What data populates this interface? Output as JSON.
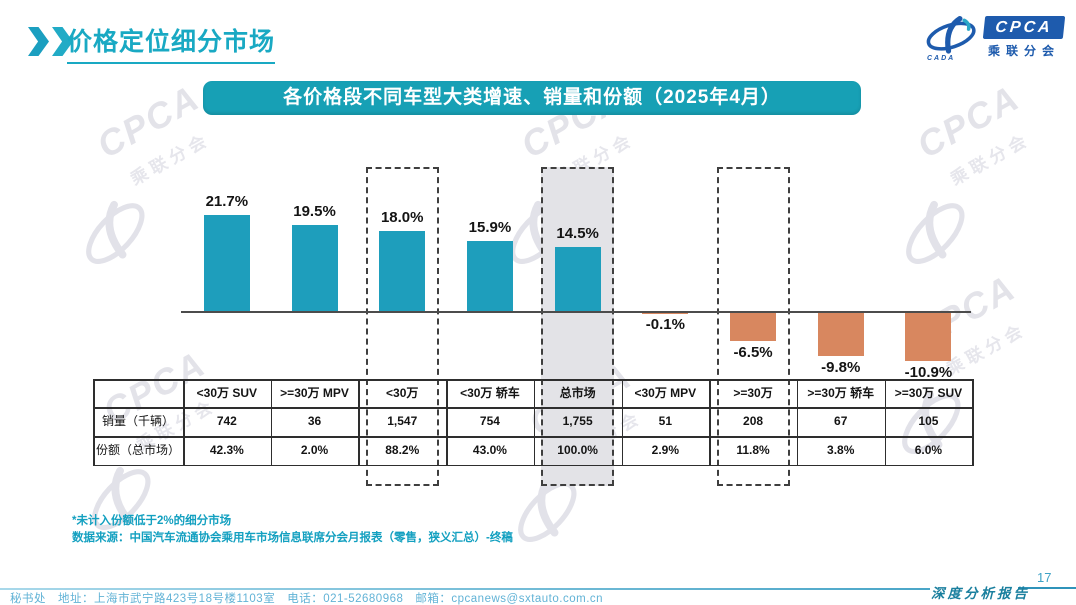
{
  "header": {
    "title": "价格定位细分市场"
  },
  "logo": {
    "cpca": "CPCA",
    "cada": "CADA",
    "org": "乘联分会"
  },
  "banner": {
    "text": "各价格段不同车型大类增速、销量和份额（2025年4月）"
  },
  "chart_data": {
    "type": "bar",
    "title": "各价格段不同车型大类增速、销量和份额（2025年4月）",
    "unit": "%",
    "categories": [
      "<30万 SUV",
      ">=30万 MPV",
      "<30万",
      "<30万 轿车",
      "总市场",
      "<30万 MPV",
      ">=30万",
      ">=30万 轿车",
      ">=30万 SUV"
    ],
    "values": [
      21.7,
      19.5,
      18.0,
      15.9,
      14.5,
      -0.1,
      -6.5,
      -9.8,
      -10.9
    ],
    "value_labels": [
      "21.7%",
      "19.5%",
      "18.0%",
      "15.9%",
      "14.5%",
      "-0.1%",
      "-6.5%",
      "-9.8%",
      "-10.9%"
    ],
    "baseline": 0,
    "grid": false,
    "legend": "none",
    "colors": {
      "positive": "#1e9ebc",
      "negative": "#d8875f",
      "highlight_fill": "#e3e3e7"
    },
    "highlight": {
      "dashed_outline": [
        "<30万",
        ">=30万"
      ],
      "gray_filled": [
        "总市场"
      ]
    }
  },
  "table": {
    "row_labels": [
      "销量（千辆）",
      "份额（总市场）"
    ],
    "columns": [
      {
        "header": "<30万 SUV",
        "volume": "742",
        "share": "42.3%",
        "box": null
      },
      {
        "header": ">=30万 MPV",
        "volume": "36",
        "share": "2.0%",
        "box": null
      },
      {
        "header": "<30万",
        "volume": "1,547",
        "share": "88.2%",
        "box": "dashed"
      },
      {
        "header": "<30万 轿车",
        "volume": "754",
        "share": "43.0%",
        "box": null
      },
      {
        "header": "总市场",
        "volume": "1,755",
        "share": "100.0%",
        "box": "gray"
      },
      {
        "header": "<30万 MPV",
        "volume": "51",
        "share": "2.9%",
        "box": null
      },
      {
        "header": ">=30万",
        "volume": "208",
        "share": "11.8%",
        "box": "dashed"
      },
      {
        "header": ">=30万 轿车",
        "volume": "67",
        "share": "3.8%",
        "box": null
      },
      {
        "header": ">=30万 SUV",
        "volume": "105",
        "share": "6.0%",
        "box": null
      }
    ]
  },
  "notes": {
    "note": "*未计入份额低于2%的细分市场",
    "source": "数据来源：中国汽车流通协会乘用车市场信息联席分会月报表（零售，狭义汇总）-终稿"
  },
  "footer": {
    "contact": "秘书处　地址：上海市武宁路423号18号楼1103室　电话：021-52680968　邮箱：cpcanews@sxtauto.com.cn",
    "page_number": "17",
    "report_label": "深度分析报告"
  }
}
